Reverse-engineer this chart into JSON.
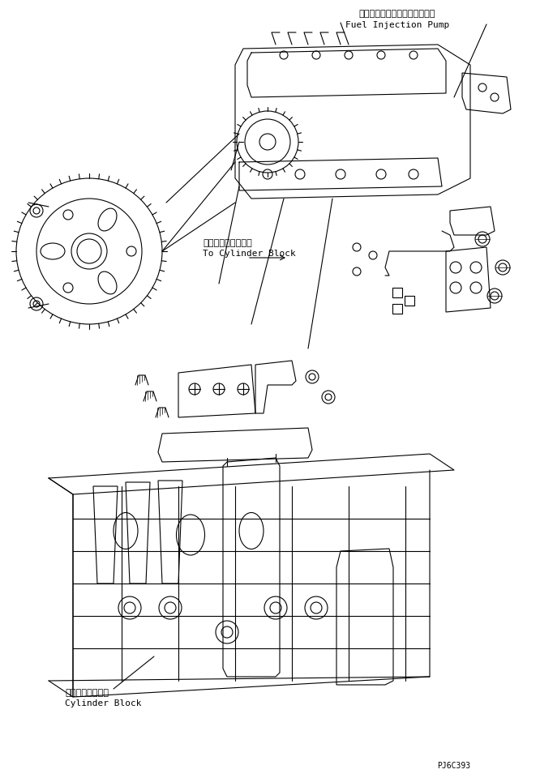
{
  "bg_color": "#ffffff",
  "line_color": "#000000",
  "text_color": "#000000",
  "fig_width": 6.66,
  "fig_height": 9.6,
  "dpi": 100,
  "label_fuel_jp": "フェルインジェクションポンプ",
  "label_fuel_en": "Fuel Injection Pump",
  "label_cylinder_jp": "シリンダブロックヘ",
  "label_cylinder_en": "To Cylinder Block",
  "label_block_jp": "シリンダブロック",
  "label_block_en": "Cylinder Block",
  "label_code": "PJ6C393",
  "font_size_jp": 8,
  "font_size_en": 8,
  "font_size_code": 7,
  "line_width": 0.8
}
